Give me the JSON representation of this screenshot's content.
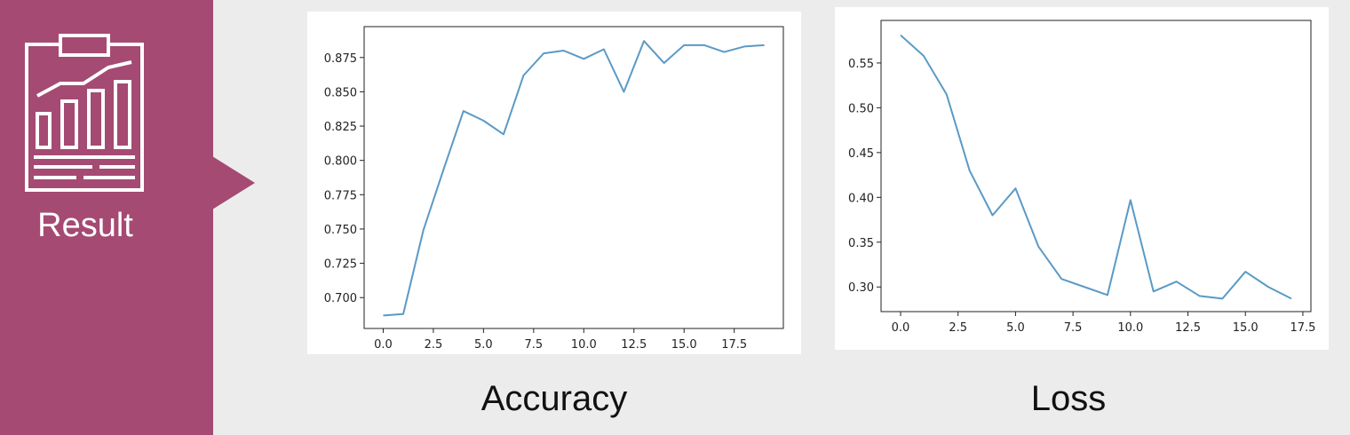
{
  "sidebar": {
    "label": "Result",
    "icon": "report-chart-icon",
    "accent_color": "#a54a73"
  },
  "captions": {
    "accuracy": "Accuracy",
    "loss": "Loss"
  },
  "chart_data": [
    {
      "type": "line",
      "title": "",
      "xlabel": "",
      "ylabel": "",
      "x": [
        0,
        1,
        2,
        3,
        4,
        5,
        6,
        7,
        8,
        9,
        10,
        11,
        12,
        13,
        14,
        15,
        16,
        17,
        18,
        19
      ],
      "series": [
        {
          "values": [
            0.687,
            0.688,
            0.749,
            0.793,
            0.836,
            0.829,
            0.819,
            0.862,
            0.878,
            0.88,
            0.874,
            0.881,
            0.85,
            0.887,
            0.871,
            0.884,
            0.884,
            0.879,
            0.883,
            0.884
          ],
          "color": "#5a9ac6"
        }
      ],
      "xlim": [
        -0.95,
        19.95
      ],
      "ylim": [
        0.6775,
        0.8975
      ],
      "x_ticks": [
        "0.0",
        "2.5",
        "5.0",
        "7.5",
        "10.0",
        "12.5",
        "15.0",
        "17.5"
      ],
      "y_ticks": [
        "0.700",
        "0.725",
        "0.750",
        "0.775",
        "0.800",
        "0.825",
        "0.850",
        "0.875"
      ],
      "grid": false
    },
    {
      "type": "line",
      "title": "",
      "xlabel": "",
      "ylabel": "",
      "x": [
        0,
        1,
        2,
        3,
        4,
        5,
        6,
        7,
        8,
        9,
        10,
        11,
        12,
        13,
        14,
        15,
        16,
        17
      ],
      "series": [
        {
          "values": [
            0.581,
            0.558,
            0.515,
            0.43,
            0.38,
            0.41,
            0.345,
            0.309,
            0.3,
            0.291,
            0.397,
            0.295,
            0.306,
            0.29,
            0.287,
            0.317,
            0.3,
            0.287
          ],
          "color": "#5a9ac6"
        }
      ],
      "xlim": [
        -0.85,
        17.85
      ],
      "ylim": [
        0.2725,
        0.5975
      ],
      "x_ticks": [
        "0.0",
        "2.5",
        "5.0",
        "7.5",
        "10.0",
        "12.5",
        "15.0",
        "17.5"
      ],
      "y_ticks": [
        "0.30",
        "0.35",
        "0.40",
        "0.45",
        "0.50",
        "0.55"
      ],
      "grid": false
    }
  ]
}
